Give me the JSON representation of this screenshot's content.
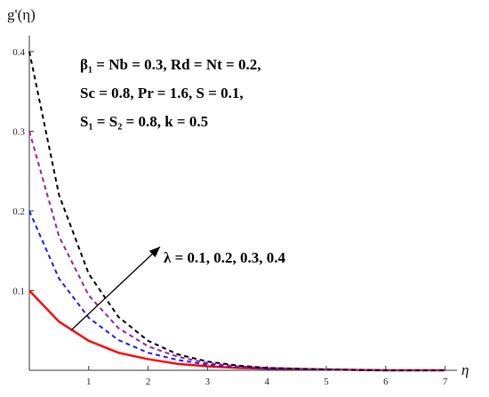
{
  "chart_data": {
    "type": "line",
    "ylabel": "g'(η)",
    "xlabel": "η",
    "xlim": [
      0,
      7.2
    ],
    "ylim": [
      0,
      0.42
    ],
    "xticks": [
      1,
      2,
      3,
      4,
      5,
      6,
      7
    ],
    "yticks": [
      0.1,
      0.2,
      0.3,
      0.4
    ],
    "xtick_labels": [
      "1",
      "2",
      "3",
      "4",
      "5",
      "6",
      "7"
    ],
    "ytick_labels": [
      "0.1",
      "0.2",
      "0.3",
      "0.4"
    ],
    "annotations": {
      "params_line1": "β₁ = Nb = 0.3,  Rd = Nt =  0.2,",
      "params_line2": "Sc = 0.8,  Pr = 1.6,  S = 0.1,",
      "params_line3": "S₁ = S₂ = 0.8, k = 0.5",
      "arrow_label": "λ = 0.1, 0.2, 0.3, 0.4"
    },
    "series": [
      {
        "lambda": 0.1,
        "color": "#ff0000",
        "dash": "solid",
        "x": [
          0,
          0.5,
          1,
          1.5,
          2,
          2.5,
          3,
          3.5,
          4,
          5,
          6,
          7
        ],
        "y": [
          0.1,
          0.061,
          0.037,
          0.022,
          0.014,
          0.008,
          0.005,
          0.003,
          0.002,
          0.001,
          0.0,
          0.0
        ]
      },
      {
        "lambda": 0.2,
        "color": "#1a1aff",
        "dash": "dashed",
        "x": [
          0,
          0.5,
          1,
          1.5,
          2,
          2.5,
          3,
          3.5,
          4,
          5,
          6,
          7
        ],
        "y": [
          0.2,
          0.115,
          0.066,
          0.038,
          0.022,
          0.013,
          0.007,
          0.004,
          0.002,
          0.001,
          0.0,
          0.0
        ]
      },
      {
        "lambda": 0.3,
        "color": "#a0208f",
        "dash": "dashed",
        "x": [
          0,
          0.5,
          1,
          1.5,
          2,
          2.5,
          3,
          3.5,
          4,
          5,
          6,
          7
        ],
        "y": [
          0.3,
          0.168,
          0.094,
          0.053,
          0.03,
          0.017,
          0.009,
          0.005,
          0.003,
          0.001,
          0.0,
          0.0
        ]
      },
      {
        "lambda": 0.4,
        "color": "#000000",
        "dash": "dashed",
        "x": [
          0,
          0.5,
          1,
          1.5,
          2,
          2.5,
          3,
          3.5,
          4,
          5,
          6,
          7
        ],
        "y": [
          0.4,
          0.22,
          0.121,
          0.067,
          0.037,
          0.02,
          0.011,
          0.006,
          0.003,
          0.001,
          0.0,
          0.0
        ]
      }
    ],
    "arrow": {
      "from": [
        0.7,
        0.05
      ],
      "to": [
        2.2,
        0.155
      ]
    },
    "grid": false,
    "legend": "none"
  }
}
